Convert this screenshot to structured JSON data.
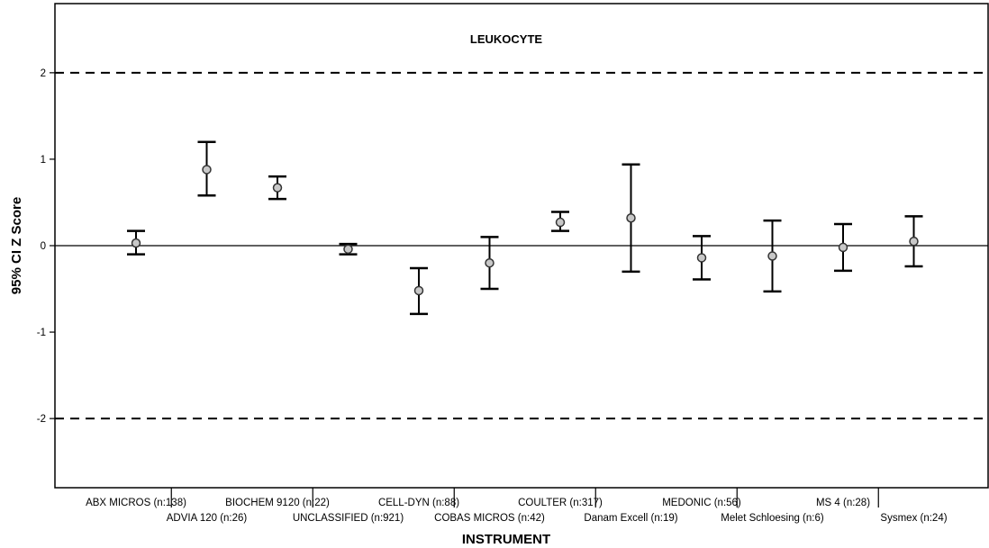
{
  "chart_data": {
    "type": "scatter",
    "title": "LEUKOCYTE",
    "xlabel": "INSTRUMENT",
    "ylabel": "95% CI Z Score",
    "ylim": [
      -2.8,
      2.8
    ],
    "y_ticks": [
      -2,
      -1,
      0,
      1,
      2
    ],
    "grid": false,
    "legend": "none",
    "reference_lines": [
      {
        "y": 2,
        "style": "dashed"
      },
      {
        "y": -2,
        "style": "dashed"
      },
      {
        "y": 0,
        "style": "solid"
      }
    ],
    "categories": [
      "ABX MICROS (n:138)",
      "ADVIA 120 (n:26)",
      "BIOCHEM 9120 (n:22)",
      "UNCLASSIFIED (n:921)",
      "CELL-DYN (n:88)",
      "COBAS MICROS (n:42)",
      "COULTER (n:317)",
      "Danam Excell (n:19)",
      "MEDONIC (n:56)",
      "Melet Schloesing (n:6)",
      "MS 4 (n:28)",
      "Sysmex (n:24)"
    ],
    "points": [
      {
        "mean": 0.03,
        "lower": -0.1,
        "upper": 0.17
      },
      {
        "mean": 0.88,
        "lower": 0.58,
        "upper": 1.2
      },
      {
        "mean": 0.67,
        "lower": 0.54,
        "upper": 0.8
      },
      {
        "mean": -0.04,
        "lower": -0.1,
        "upper": 0.02
      },
      {
        "mean": -0.52,
        "lower": -0.79,
        "upper": -0.26
      },
      {
        "mean": -0.2,
        "lower": -0.5,
        "upper": 0.1
      },
      {
        "mean": 0.27,
        "lower": 0.17,
        "upper": 0.39
      },
      {
        "mean": 0.32,
        "lower": -0.3,
        "upper": 0.94
      },
      {
        "mean": -0.14,
        "lower": -0.39,
        "upper": 0.11
      },
      {
        "mean": -0.12,
        "lower": -0.53,
        "upper": 0.29
      },
      {
        "mean": -0.02,
        "lower": -0.29,
        "upper": 0.25
      },
      {
        "mean": 0.05,
        "lower": -0.24,
        "upper": 0.34
      }
    ],
    "colors": {
      "marker_fill": "#c8c8c8",
      "marker_stroke": "#333333",
      "line": "#000000"
    }
  }
}
